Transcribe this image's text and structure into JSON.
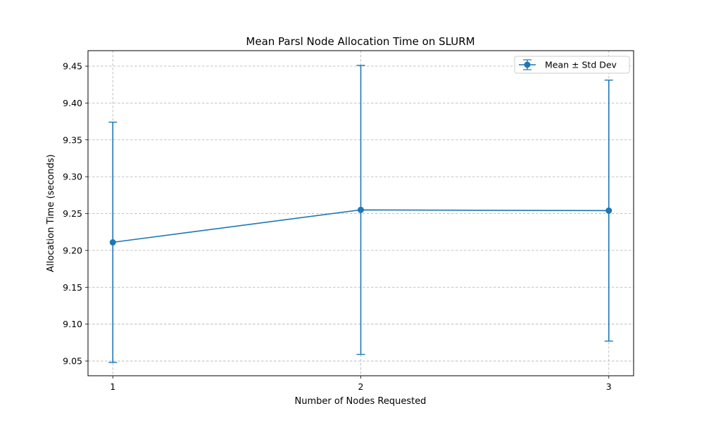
{
  "chart_data": {
    "type": "line",
    "title": "Mean Parsl Node Allocation Time on SLURM",
    "xlabel": "Number of Nodes Requested",
    "ylabel": "Allocation Time (seconds)",
    "x": [
      1,
      2,
      3
    ],
    "xticks": [
      "1",
      "2",
      "3"
    ],
    "yticks": [
      "9.05",
      "9.10",
      "9.15",
      "9.20",
      "9.25",
      "9.30",
      "9.35",
      "9.40",
      "9.45"
    ],
    "xlim": [
      0.9,
      3.1
    ],
    "ylim": [
      9.03,
      9.471
    ],
    "grid": true,
    "legend_position": "top-right",
    "series": [
      {
        "name": "Mean ± Std Dev",
        "color": "#1f77b4",
        "marker": "circle",
        "values": [
          9.211,
          9.255,
          9.254
        ],
        "std_dev": [
          0.163,
          0.196,
          0.177
        ]
      }
    ]
  }
}
